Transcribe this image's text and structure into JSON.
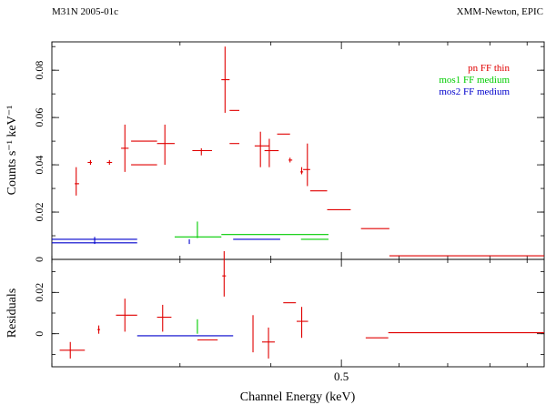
{
  "header": {
    "left": "M31N 2005-01c",
    "right": "XMM-Newton, EPIC"
  },
  "chart_data": [
    {
      "type": "scatter",
      "panel": "spectrum",
      "title": "",
      "xlabel": "Channel Energy (keV)",
      "ylabel": "Counts s⁻¹ keV⁻¹",
      "xlim": [
        0.2,
        0.95
      ],
      "ylim": [
        0,
        0.092
      ],
      "x_scale": "log",
      "x_ticks": [
        {
          "value": 0.5,
          "label": "0.5"
        }
      ],
      "y_ticks": [
        {
          "value": 0,
          "label": "0"
        },
        {
          "value": 0.02,
          "label": "0.02"
        },
        {
          "value": 0.04,
          "label": "0.04"
        },
        {
          "value": 0.06,
          "label": "0.06"
        },
        {
          "value": 0.08,
          "label": "0.08"
        }
      ],
      "legend_position": "top-right",
      "series": [
        {
          "name": "pn FF thin",
          "color": "#e00000",
          "points": [
            {
              "x": 0.216,
              "xlo": 0.215,
              "xhi": 0.218,
              "y": 0.032,
              "ylo": 0.027,
              "yhi": 0.039
            },
            {
              "x": 0.226,
              "xlo": 0.224,
              "xhi": 0.227,
              "y": 0.041,
              "ylo": 0.04,
              "yhi": 0.042
            },
            {
              "x": 0.24,
              "xlo": 0.238,
              "xhi": 0.242,
              "y": 0.041,
              "ylo": 0.04,
              "yhi": 0.042
            },
            {
              "x": 0.252,
              "xlo": 0.249,
              "xhi": 0.255,
              "y": 0.047,
              "ylo": 0.037,
              "yhi": 0.057
            },
            {
              "x": 0.268,
              "xlo": 0.257,
              "xhi": 0.279,
              "y": 0.05,
              "ylo": 0.05,
              "yhi": 0.05
            },
            {
              "x": 0.268,
              "xlo": 0.257,
              "xhi": 0.279,
              "y": 0.04,
              "ylo": 0.04,
              "yhi": 0.04
            },
            {
              "x": 0.286,
              "xlo": 0.279,
              "xhi": 0.295,
              "y": 0.049,
              "ylo": 0.04,
              "yhi": 0.057
            },
            {
              "x": 0.321,
              "xlo": 0.312,
              "xhi": 0.332,
              "y": 0.046,
              "ylo": 0.044,
              "yhi": 0.047
            },
            {
              "x": 0.346,
              "xlo": 0.342,
              "xhi": 0.351,
              "y": 0.076,
              "ylo": 0.062,
              "yhi": 0.09
            },
            {
              "x": 0.356,
              "xlo": 0.351,
              "xhi": 0.362,
              "y": 0.063,
              "ylo": 0.063,
              "yhi": 0.063
            },
            {
              "x": 0.356,
              "xlo": 0.351,
              "xhi": 0.362,
              "y": 0.049,
              "ylo": 0.049,
              "yhi": 0.049
            },
            {
              "x": 0.387,
              "xlo": 0.38,
              "xhi": 0.398,
              "y": 0.048,
              "ylo": 0.039,
              "yhi": 0.054
            },
            {
              "x": 0.398,
              "xlo": 0.392,
              "xhi": 0.41,
              "y": 0.046,
              "ylo": 0.039,
              "yhi": 0.051
            },
            {
              "x": 0.413,
              "xlo": 0.408,
              "xhi": 0.425,
              "y": 0.053,
              "ylo": 0.053,
              "yhi": 0.053
            },
            {
              "x": 0.425,
              "xlo": 0.423,
              "xhi": 0.428,
              "y": 0.042,
              "ylo": 0.041,
              "yhi": 0.043
            },
            {
              "x": 0.441,
              "xlo": 0.439,
              "xhi": 0.443,
              "y": 0.037,
              "ylo": 0.036,
              "yhi": 0.039
            },
            {
              "x": 0.449,
              "xlo": 0.443,
              "xhi": 0.453,
              "y": 0.038,
              "ylo": 0.031,
              "yhi": 0.049
            },
            {
              "x": 0.465,
              "xlo": 0.453,
              "xhi": 0.478,
              "y": 0.029,
              "ylo": 0.029,
              "yhi": 0.029
            },
            {
              "x": 0.502,
              "xlo": 0.478,
              "xhi": 0.515,
              "y": 0.021,
              "ylo": 0.021,
              "yhi": 0.021
            },
            {
              "x": 0.556,
              "xlo": 0.532,
              "xhi": 0.582,
              "y": 0.013,
              "ylo": 0.013,
              "yhi": 0.013
            },
            {
              "x": 0.752,
              "xlo": 0.582,
              "xhi": 0.95,
              "y": 0.0015,
              "ylo": 0.0015,
              "yhi": 0.0015
            }
          ]
        },
        {
          "name": "mos1 FF medium",
          "color": "#00cc00",
          "points": [
            {
              "x": 0.317,
              "xlo": 0.295,
              "xhi": 0.342,
              "y": 0.0095,
              "ylo": 0.0095,
              "yhi": 0.0095
            },
            {
              "x": 0.317,
              "xlo": 0.317,
              "xhi": 0.317,
              "y": 0.011,
              "ylo": 0.009,
              "yhi": 0.016
            },
            {
              "x": 0.395,
              "xlo": 0.342,
              "xhi": 0.48,
              "y": 0.0105,
              "ylo": 0.0105,
              "yhi": 0.0105
            },
            {
              "x": 0.46,
              "xlo": 0.44,
              "xhi": 0.48,
              "y": 0.0085,
              "ylo": 0.0085,
              "yhi": 0.0085
            }
          ]
        },
        {
          "name": "mos2 FF medium",
          "color": "#0000cc",
          "points": [
            {
              "x": 0.229,
              "xlo": 0.2,
              "xhi": 0.262,
              "y": 0.0085,
              "ylo": 0.0085,
              "yhi": 0.0085
            },
            {
              "x": 0.229,
              "xlo": 0.229,
              "xhi": 0.229,
              "y": 0.0075,
              "ylo": 0.0065,
              "yhi": 0.0095
            },
            {
              "x": 0.229,
              "xlo": 0.2,
              "xhi": 0.262,
              "y": 0.007,
              "ylo": 0.007,
              "yhi": 0.007
            },
            {
              "x": 0.309,
              "xlo": 0.309,
              "xhi": 0.309,
              "y": 0.0075,
              "ylo": 0.0065,
              "yhi": 0.0085
            },
            {
              "x": 0.383,
              "xlo": 0.355,
              "xhi": 0.412,
              "y": 0.0085,
              "ylo": 0.0085,
              "yhi": 0.0085
            }
          ]
        }
      ]
    },
    {
      "type": "scatter",
      "panel": "residuals",
      "title": "",
      "xlabel": "Channel Energy (keV)",
      "ylabel": "Residuals",
      "xlim": [
        0.2,
        0.95
      ],
      "ylim": [
        -0.016,
        0.036
      ],
      "x_scale": "log",
      "y_ticks": [
        {
          "value": 0,
          "label": "0"
        },
        {
          "value": 0.02,
          "label": "0.02"
        }
      ],
      "series": [
        {
          "name": "pn FF thin",
          "color": "#e00000",
          "points": [
            {
              "x": 0.212,
              "xlo": 0.205,
              "xhi": 0.222,
              "y": -0.008,
              "ylo": -0.012,
              "yhi": -0.004
            },
            {
              "x": 0.232,
              "xlo": 0.231,
              "xhi": 0.233,
              "y": 0.002,
              "ylo": 0.0,
              "yhi": 0.004
            },
            {
              "x": 0.252,
              "xlo": 0.245,
              "xhi": 0.262,
              "y": 0.009,
              "ylo": 0.001,
              "yhi": 0.017
            },
            {
              "x": 0.284,
              "xlo": 0.279,
              "xhi": 0.292,
              "y": 0.008,
              "ylo": 0.001,
              "yhi": 0.014
            },
            {
              "x": 0.345,
              "xlo": 0.343,
              "xhi": 0.347,
              "y": 0.028,
              "ylo": 0.018,
              "yhi": 0.04
            },
            {
              "x": 0.325,
              "xlo": 0.317,
              "xhi": 0.338,
              "y": -0.003,
              "ylo": -0.003,
              "yhi": -0.003
            },
            {
              "x": 0.378,
              "xlo": 0.378,
              "xhi": 0.378,
              "y": 0.0,
              "ylo": -0.009,
              "yhi": 0.009
            },
            {
              "x": 0.397,
              "xlo": 0.389,
              "xhi": 0.405,
              "y": -0.004,
              "ylo": -0.012,
              "yhi": 0.003
            },
            {
              "x": 0.424,
              "xlo": 0.416,
              "xhi": 0.433,
              "y": 0.015,
              "ylo": 0.015,
              "yhi": 0.015
            },
            {
              "x": 0.441,
              "xlo": 0.434,
              "xhi": 0.45,
              "y": 0.006,
              "ylo": -0.002,
              "yhi": 0.013
            },
            {
              "x": 0.567,
              "xlo": 0.54,
              "xhi": 0.58,
              "y": -0.002,
              "ylo": -0.002,
              "yhi": -0.002
            },
            {
              "x": 0.749,
              "xlo": 0.58,
              "xhi": 0.95,
              "y": 0.0005,
              "ylo": 0.0005,
              "yhi": 0.0005
            }
          ]
        },
        {
          "name": "mos1 FF medium",
          "color": "#00cc00",
          "points": [
            {
              "x": 0.317,
              "xlo": 0.317,
              "xhi": 0.317,
              "y": 0.003,
              "ylo": 0.0,
              "yhi": 0.007
            }
          ]
        },
        {
          "name": "mos2 FF medium",
          "color": "#0000cc",
          "points": [
            {
              "x": 0.29,
              "xlo": 0.262,
              "xhi": 0.355,
              "y": -0.001,
              "ylo": -0.001,
              "yhi": -0.001
            }
          ]
        }
      ]
    }
  ]
}
